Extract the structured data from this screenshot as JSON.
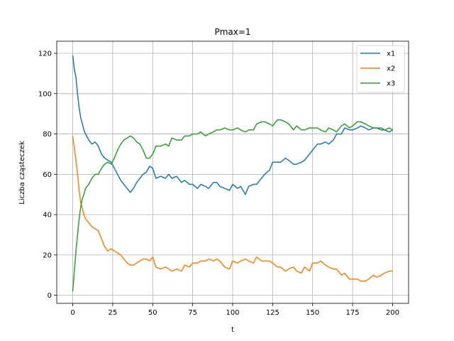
{
  "chart_data": {
    "type": "line",
    "title": "Pmax=1",
    "xlabel": "t",
    "ylabel": "Liczba cząsteczek",
    "xlim": [
      -10,
      210
    ],
    "ylim": [
      -4,
      126
    ],
    "xticks": [
      0,
      25,
      50,
      75,
      100,
      125,
      150,
      175,
      200
    ],
    "yticks": [
      0,
      20,
      40,
      60,
      80,
      100,
      120
    ],
    "grid": true,
    "legend_position": "top-right",
    "series": [
      {
        "name": "x1",
        "color": "#1f77b4",
        "x": [
          0,
          1,
          2,
          3,
          4,
          5,
          6,
          7,
          8,
          10,
          12,
          14,
          16,
          18,
          20,
          22,
          24,
          26,
          28,
          30,
          32,
          34,
          36,
          38,
          40,
          42,
          44,
          46,
          48,
          50,
          52,
          55,
          58,
          60,
          62,
          65,
          68,
          70,
          73,
          75,
          78,
          80,
          83,
          85,
          88,
          90,
          92,
          95,
          98,
          100,
          103,
          105,
          108,
          110,
          113,
          115,
          118,
          120,
          123,
          125,
          128,
          130,
          133,
          135,
          138,
          140,
          143,
          145,
          148,
          150,
          153,
          155,
          158,
          160,
          163,
          165,
          168,
          170,
          173,
          175,
          178,
          180,
          183,
          185,
          188,
          190,
          193,
          195,
          198,
          200
        ],
        "y": [
          119,
          112,
          108,
          100,
          93,
          88,
          85,
          82,
          80,
          77,
          75,
          76,
          74,
          70,
          68,
          67,
          66,
          63,
          60,
          57,
          55,
          53,
          51,
          53,
          56,
          58,
          60,
          61,
          64,
          63,
          58,
          59,
          58,
          60,
          58,
          59,
          56,
          57,
          55,
          55,
          53,
          55,
          54,
          53,
          56,
          56,
          54,
          53,
          52,
          55,
          53,
          54,
          50,
          54,
          55,
          55,
          58,
          60,
          62,
          66,
          66,
          66,
          68,
          67,
          65,
          65,
          66,
          67,
          70,
          72,
          75,
          75,
          76,
          75,
          77,
          80,
          80,
          83,
          82,
          82,
          83,
          84,
          83,
          82,
          83,
          83,
          82,
          82,
          81,
          82
        ]
      },
      {
        "name": "x2",
        "color": "#ff7f0e",
        "x": [
          0,
          1,
          2,
          3,
          4,
          5,
          6,
          7,
          8,
          10,
          12,
          14,
          16,
          18,
          20,
          22,
          24,
          26,
          28,
          30,
          32,
          34,
          36,
          38,
          40,
          42,
          44,
          46,
          48,
          50,
          52,
          55,
          58,
          60,
          62,
          65,
          68,
          70,
          73,
          75,
          78,
          80,
          83,
          85,
          88,
          90,
          92,
          95,
          98,
          100,
          103,
          105,
          108,
          110,
          113,
          115,
          118,
          120,
          123,
          125,
          128,
          130,
          133,
          135,
          138,
          140,
          143,
          145,
          148,
          150,
          153,
          155,
          158,
          160,
          163,
          165,
          168,
          170,
          173,
          175,
          178,
          180,
          183,
          185,
          188,
          190,
          193,
          195,
          198,
          200
        ],
        "y": [
          79,
          73,
          67,
          60,
          52,
          46,
          43,
          40,
          38,
          36,
          34,
          33,
          32,
          28,
          24,
          22,
          23,
          22,
          21,
          20,
          18,
          16,
          15,
          15,
          16,
          17,
          18,
          18,
          17,
          19,
          14,
          13,
          14,
          13,
          12,
          13,
          12,
          15,
          14,
          16,
          16,
          17,
          17,
          18,
          17,
          18,
          17,
          14,
          13,
          17,
          16,
          17,
          18,
          17,
          16,
          19,
          17,
          17,
          17,
          16,
          14,
          14,
          12,
          13,
          14,
          12,
          11,
          14,
          12,
          16,
          16,
          17,
          15,
          14,
          13,
          13,
          10,
          11,
          8,
          8,
          8,
          7,
          7,
          8,
          10,
          9,
          10,
          11,
          12,
          12
        ]
      },
      {
        "name": "x3",
        "color": "#2ca02c",
        "x": [
          0,
          1,
          2,
          3,
          4,
          5,
          6,
          7,
          8,
          10,
          12,
          14,
          16,
          18,
          20,
          22,
          24,
          26,
          28,
          30,
          32,
          34,
          36,
          38,
          40,
          42,
          44,
          46,
          48,
          50,
          52,
          55,
          58,
          60,
          62,
          65,
          68,
          70,
          73,
          75,
          78,
          80,
          83,
          85,
          88,
          90,
          92,
          95,
          98,
          100,
          103,
          105,
          108,
          110,
          113,
          115,
          118,
          120,
          123,
          125,
          128,
          130,
          133,
          135,
          138,
          140,
          143,
          145,
          148,
          150,
          153,
          155,
          158,
          160,
          163,
          165,
          168,
          170,
          173,
          175,
          178,
          180,
          183,
          185,
          188,
          190,
          193,
          195,
          198,
          200
        ],
        "y": [
          2,
          12,
          22,
          30,
          38,
          44,
          48,
          50,
          53,
          55,
          58,
          60,
          60,
          63,
          65,
          66,
          65,
          68,
          72,
          75,
          77,
          78,
          79,
          78,
          76,
          75,
          72,
          68,
          68,
          70,
          74,
          74,
          75,
          74,
          78,
          77,
          77,
          79,
          79,
          80,
          80,
          81,
          79,
          80,
          81,
          82,
          82,
          83,
          82,
          82,
          83,
          82,
          81,
          82,
          82,
          85,
          86,
          86,
          85,
          84,
          87,
          87,
          86,
          85,
          82,
          84,
          82,
          82,
          83,
          83,
          83,
          82,
          81,
          83,
          82,
          81,
          84,
          85,
          83,
          84,
          86,
          86,
          85,
          84,
          83,
          83,
          83,
          82,
          83,
          82
        ]
      }
    ]
  }
}
